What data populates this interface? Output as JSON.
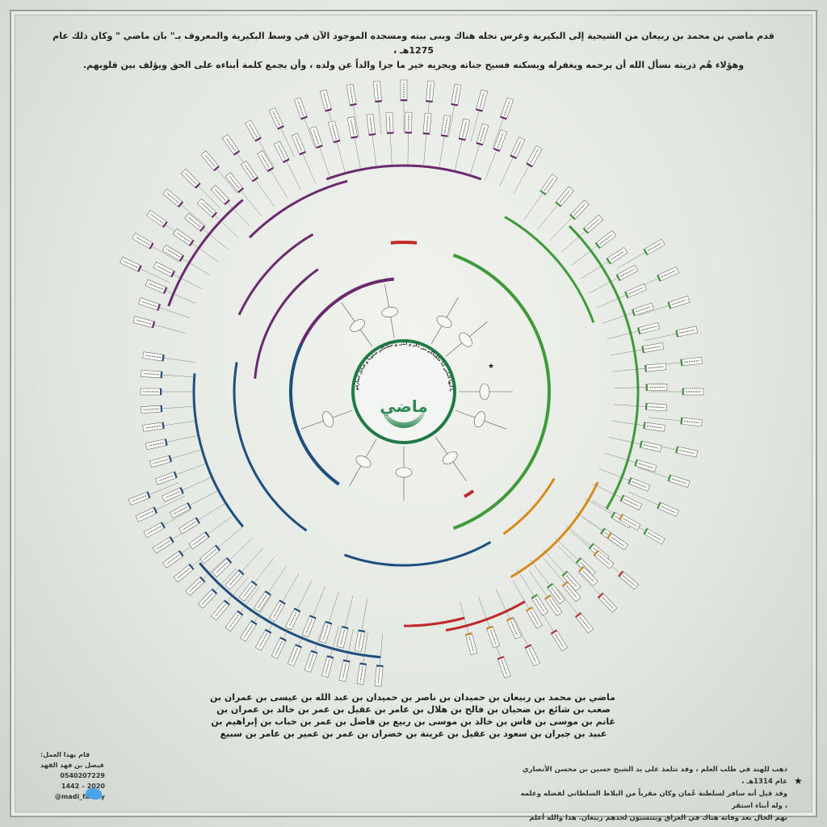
{
  "intro": {
    "line1": "قدم ماضي بن محمد بن ربيعان من الشيحية إلى البكيرية وغرس نخله هناك وبنى بيته ومسجده الموجود الآن في وسط البكيرية والمعروف بـ\" بان ماضي \" وكان ذلك عام 1275هـ ،",
    "line2": "وهؤلاء هُم ذريته نسأل الله أن يرحمه ويغفرله ويسكنه فسيح جناته ويجزيه خير ما جزا والداً عن ولده ، وأن يجمع كلمة أبناءه على الحق ويؤلف بين قلوبهم."
  },
  "center": {
    "name": "ماضي",
    "verse": "يا أيها الناس إنا خلقناكم من ذكر و أنثى و جعلناكم شعوبا و قبائل لتعارفوا"
  },
  "lineage": [
    "ماضي بن محمد بن ربيعان بن حميدان بن ناصر بن حميدان بن عبد الله بن عيسى بن عمران بن",
    "صعب بن شائع بن ضحيان بن فالح بن هلال بن عامر بن عقيل بن عمر بن خالد بن عمران بن",
    "غانم بن موسى بن فاس بن خالد بن موسى بن ربيع بن فاضل بن عمر بن خباب بن إبراهيم بن",
    "عبيد بن جبران بن سعود بن عقيل بن عرينة بن خضران بن عمر بن عمير بن عامر بن سبيع"
  ],
  "credits": {
    "heading": "قام بهذا العمل:",
    "author": "فيصل بن فهد الفهد",
    "phone": "0540207229",
    "years": "1442 – 2020",
    "twitter": "@madi_family",
    "twitter_icon": "twitter-bird-icon"
  },
  "note": {
    "star": "★",
    "line1": "ذهب للهند في طلب العلم ، وقد تتلمذ على يد الشيخ حسين بن محسن الأنصاري عام 1314هـ ،",
    "line2": "وقد قيل أنه سافر لسلطنة عُمان وكان مقرباً من البلاط السلطاني لفضله وعلمه ، وله أبناء استقر",
    "line3": "بهم الحال بعد وفاته هناك في العراق وينتسبون لجدهم ربيعان. هذا والله أعلم"
  },
  "colors": {
    "center_ring": "#1f7a45",
    "purple_branch": "#6b2a6e",
    "green_branch": "#3f9a3a",
    "blue_branch": "#1f4f7f",
    "orange_branch": "#d98a1a",
    "red_branch": "#c0282a"
  }
}
